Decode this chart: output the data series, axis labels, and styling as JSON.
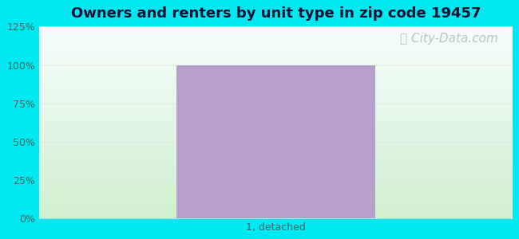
{
  "title": "Owners and renters by unit type in zip code 19457",
  "categories": [
    "1, detached"
  ],
  "values": [
    100
  ],
  "bar_color": "#b8a0cc",
  "ylim": [
    0,
    125
  ],
  "yticks": [
    0,
    25,
    50,
    75,
    100,
    125
  ],
  "ytick_labels": [
    "0%",
    "25%",
    "50%",
    "75%",
    "100%",
    "125%"
  ],
  "title_fontsize": 13,
  "tick_fontsize": 9,
  "outer_bg_color": "#00e8f0",
  "watermark_text": "City-Data.com",
  "watermark_color": "#aabbc0",
  "watermark_fontsize": 11,
  "grid_color": "#e0ece0",
  "tick_color": "#446666",
  "title_color": "#111133"
}
